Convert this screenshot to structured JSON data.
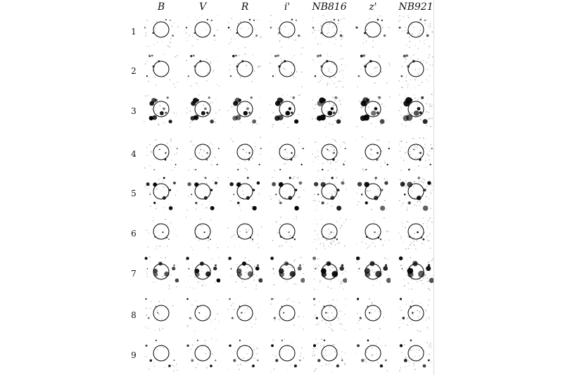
{
  "figure": {
    "columns": [
      "B",
      "V",
      "R",
      "i'",
      "NB816",
      "z'",
      "NB921"
    ],
    "rows": [
      "1",
      "2",
      "3",
      "4",
      "5",
      "6",
      "7",
      "8",
      "9"
    ]
  },
  "colors": {
    "ink": "#000000",
    "background": "#ffffff"
  }
}
